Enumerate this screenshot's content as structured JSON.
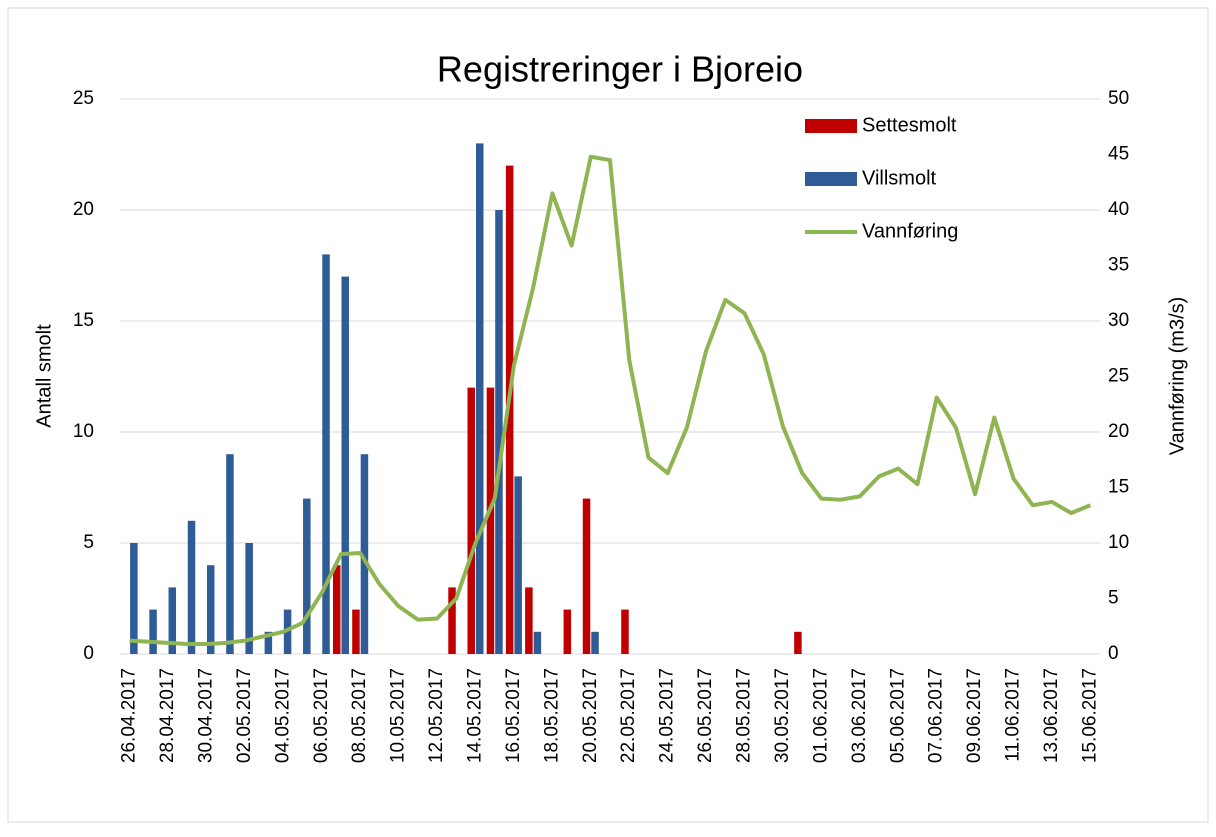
{
  "chart_data": {
    "type": "bar",
    "title": "Registreringer i Bjoreio",
    "y_label": "Antall smolt",
    "y2_label": "Vannføring (m3/s)",
    "categories": [
      "26.04.2017",
      null,
      "28.04.2017",
      null,
      "30.04.2017",
      null,
      "02.05.2017",
      null,
      "04.05.2017",
      null,
      "06.05.2017",
      null,
      "08.05.2017",
      null,
      "10.05.2017",
      null,
      "12.05.2017",
      null,
      "14.05.2017",
      null,
      "16.05.2017",
      null,
      "18.05.2017",
      null,
      "20.05.2017",
      null,
      "22.05.2017",
      null,
      "24.05.2017",
      null,
      "26.05.2017",
      null,
      "28.05.2017",
      null,
      "30.05.2017",
      null,
      "01.06.2017",
      null,
      "03.06.2017",
      null,
      "05.06.2017",
      null,
      "07.06.2017",
      null,
      "09.06.2017",
      null,
      "11.06.2017",
      null,
      "13.06.2017",
      null,
      "15.06.2017"
    ],
    "series": [
      {
        "name": "Settesmolt",
        "color": "#c00000",
        "type": "bar",
        "values": [
          0,
          0,
          0,
          0,
          0,
          0,
          0,
          0,
          0,
          0,
          0,
          4,
          2,
          0,
          0,
          0,
          0,
          3,
          12,
          12,
          22,
          3,
          0,
          2,
          7,
          0,
          2,
          0,
          0,
          0,
          0,
          0,
          0,
          0,
          0,
          1,
          0,
          0,
          0,
          0,
          0,
          0,
          0,
          0,
          0,
          0,
          0,
          0,
          0,
          0,
          0
        ]
      },
      {
        "name": "Villsmolt",
        "color": "#2f5b97",
        "type": "bar",
        "values": [
          5,
          2,
          3,
          6,
          4,
          9,
          5,
          1,
          2,
          7,
          18,
          17,
          9,
          0,
          0,
          0,
          0,
          0,
          23,
          20,
          8,
          1,
          0,
          0,
          1,
          0,
          0,
          0,
          0,
          0,
          0,
          0,
          0,
          0,
          0,
          0,
          0,
          0,
          0,
          0,
          0,
          0,
          0,
          0,
          0,
          0,
          0,
          0,
          0,
          0,
          0
        ]
      },
      {
        "name": "Vannføring",
        "color": "#8fb452",
        "type": "line",
        "axis": "y2",
        "values": [
          1.2,
          1.1,
          1.0,
          0.9,
          0.9,
          1.0,
          1.2,
          1.6,
          2.0,
          2.8,
          5.5,
          9.0,
          9.1,
          6.3,
          4.3,
          3.1,
          3.2,
          5.0,
          10,
          14,
          26,
          33,
          41.5,
          36.8,
          44.8,
          44.5,
          26.5,
          17.7,
          16.3,
          20.4,
          27.3,
          31.9,
          30.7,
          27,
          20.5,
          16.3,
          14,
          13.9,
          14.2,
          16,
          16.7,
          15.3,
          23.1,
          20.4,
          14.4,
          21.3,
          15.8,
          13.4,
          13.7,
          12.7,
          13.4
        ]
      }
    ],
    "ylim": [
      0,
      25
    ],
    "yticks": [
      0,
      5,
      10,
      15,
      20,
      25
    ],
    "y2lim": [
      0,
      50
    ],
    "y2ticks": [
      0,
      5,
      10,
      15,
      20,
      25,
      30,
      35,
      40,
      45,
      50
    ],
    "grid": true,
    "legend": "top-right"
  }
}
